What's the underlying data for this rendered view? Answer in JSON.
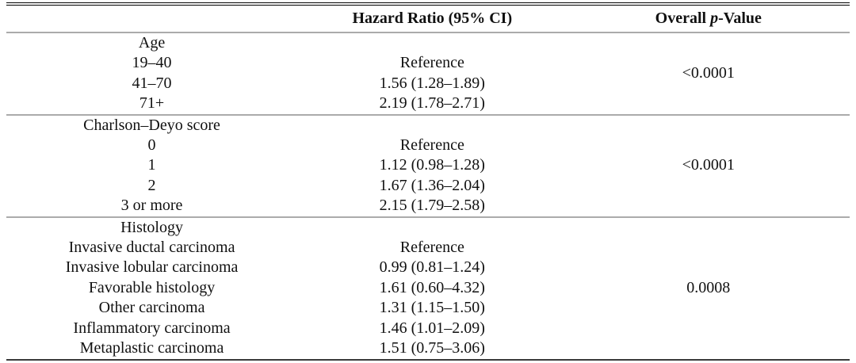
{
  "page": {
    "background_color": "#ffffff",
    "text_color": "#111111",
    "rule_gray_color": "#ababab",
    "rule_black_color": "#000000"
  },
  "table": {
    "header": {
      "col1": "",
      "hazard_ratio": "Hazard Ratio (95% CI)",
      "overall": "Overall ",
      "p_italic": "p",
      "value_suffix": "-Value"
    },
    "sections": [
      {
        "p_value": "<0.0001",
        "rows": [
          {
            "label": "Age",
            "value": ""
          },
          {
            "label": "19–40",
            "value": "Reference"
          },
          {
            "label": "41–70",
            "value": "1.56 (1.28–1.89)"
          },
          {
            "label": "71+",
            "value": "2.19 (1.78–2.71)"
          }
        ]
      },
      {
        "p_value": "<0.0001",
        "rows": [
          {
            "label": "Charlson–Deyo score",
            "value": ""
          },
          {
            "label": "0",
            "value": "Reference"
          },
          {
            "label": "1",
            "value": "1.12 (0.98–1.28)"
          },
          {
            "label": "2",
            "value": "1.67 (1.36–2.04)"
          },
          {
            "label": "3 or more",
            "value": "2.15 (1.79–2.58)"
          }
        ]
      },
      {
        "p_value": "0.0008",
        "rows": [
          {
            "label": "Histology",
            "value": ""
          },
          {
            "label": "Invasive ductal carcinoma",
            "value": "Reference"
          },
          {
            "label": "Invasive lobular carcinoma",
            "value": "0.99 (0.81–1.24)"
          },
          {
            "label": "Favorable histology",
            "value": "1.61 (0.60–4.32)"
          },
          {
            "label": "Other carcinoma",
            "value": "1.31 (1.15–1.50)"
          },
          {
            "label": "Inflammatory carcinoma",
            "value": "1.46 (1.01–2.09)"
          },
          {
            "label": "Metaplastic carcinoma",
            "value": "1.51 (0.75–3.06)"
          }
        ]
      }
    ]
  }
}
